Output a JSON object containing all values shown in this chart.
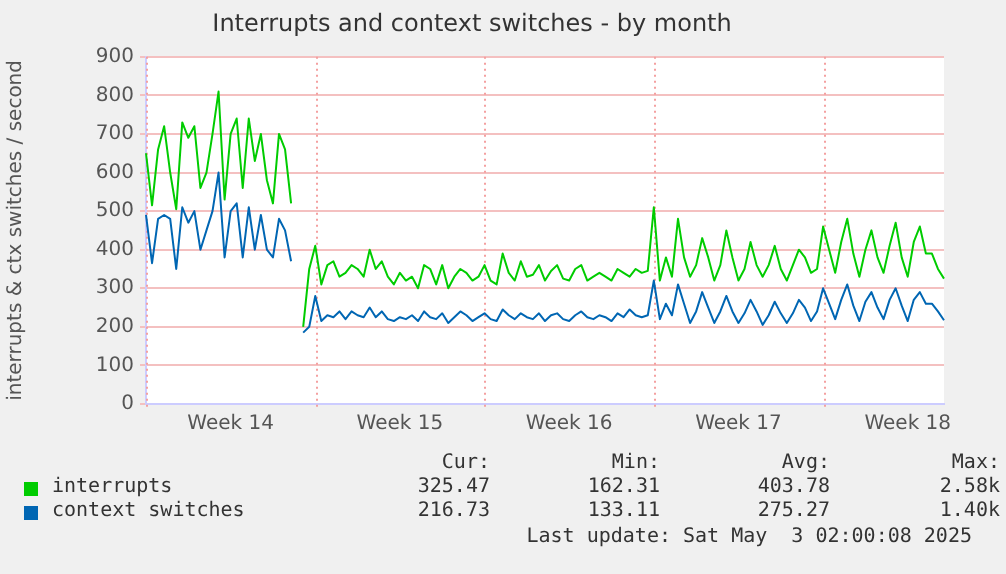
{
  "chart_data": {
    "type": "line",
    "title": "Interrupts and context switches - by month",
    "ylabel": "interrupts & ctx switches / second",
    "categories": [
      null,
      null,
      null,
      null,
      null,
      null,
      null,
      null,
      null,
      null,
      null,
      null,
      null,
      null,
      "Week 14",
      null,
      null,
      null,
      null,
      null,
      null,
      null,
      null,
      null,
      null,
      null,
      null,
      null,
      null,
      null,
      null,
      null,
      null,
      null,
      null,
      null,
      null,
      null,
      null,
      null,
      null,
      null,
      "Week 15",
      null,
      null,
      null,
      null,
      null,
      null,
      null,
      null,
      null,
      null,
      null,
      null,
      null,
      null,
      null,
      null,
      null,
      null,
      null,
      null,
      null,
      null,
      null,
      null,
      null,
      null,
      null,
      "Week 16",
      null,
      null,
      null,
      null,
      null,
      null,
      null,
      null,
      null,
      null,
      null,
      null,
      null,
      null,
      null,
      null,
      null,
      null,
      null,
      null,
      null,
      null,
      null,
      null,
      null,
      null,
      null,
      "Week 17",
      null,
      null,
      null,
      null,
      null,
      null,
      null,
      null,
      null,
      null,
      null,
      null,
      null,
      null,
      null,
      null,
      null,
      null,
      null,
      null,
      null,
      null,
      null,
      null,
      null,
      null,
      null,
      "Week 18",
      null,
      null,
      null,
      null,
      null,
      null
    ],
    "ylim": [
      0,
      900
    ],
    "yticks": [
      0,
      100,
      200,
      300,
      400,
      500,
      600,
      700,
      800,
      900
    ],
    "grid": true,
    "legend": "bottom",
    "marker": "none",
    "line_style": "solid",
    "series": [
      {
        "name": "interrupts",
        "color": "#00cc00",
        "values": [
          650,
          515,
          660,
          720,
          600,
          505,
          730,
          690,
          720,
          560,
          600,
          700,
          810,
          530,
          700,
          740,
          560,
          740,
          630,
          700,
          580,
          520,
          700,
          660,
          520,
          null,
          200,
          350,
          410,
          310,
          360,
          370,
          330,
          340,
          360,
          350,
          330,
          400,
          350,
          370,
          330,
          310,
          340,
          320,
          330,
          300,
          360,
          350,
          310,
          360,
          300,
          330,
          350,
          340,
          320,
          330,
          360,
          320,
          310,
          390,
          340,
          320,
          370,
          330,
          335,
          360,
          320,
          345,
          360,
          325,
          320,
          350,
          360,
          320,
          330,
          340,
          330,
          320,
          350,
          340,
          330,
          350,
          340,
          345,
          510,
          320,
          380,
          330,
          480,
          380,
          330,
          360,
          430,
          380,
          320,
          360,
          450,
          380,
          320,
          350,
          420,
          360,
          330,
          360,
          410,
          350,
          320,
          360,
          400,
          380,
          340,
          350,
          460,
          400,
          340,
          420,
          480,
          390,
          330,
          400,
          450,
          380,
          340,
          410,
          470,
          380,
          330,
          420,
          460,
          390,
          390,
          350,
          325
        ]
      },
      {
        "name": "context switches",
        "color": "#0066b3",
        "values": [
          490,
          365,
          480,
          490,
          480,
          350,
          510,
          470,
          500,
          400,
          450,
          500,
          600,
          380,
          500,
          520,
          380,
          510,
          400,
          490,
          400,
          380,
          480,
          450,
          370,
          null,
          185,
          200,
          280,
          215,
          230,
          225,
          240,
          220,
          240,
          230,
          225,
          250,
          225,
          240,
          220,
          215,
          225,
          220,
          230,
          215,
          240,
          225,
          220,
          235,
          210,
          225,
          240,
          230,
          215,
          225,
          235,
          220,
          215,
          245,
          230,
          220,
          235,
          225,
          220,
          235,
          215,
          230,
          235,
          220,
          215,
          230,
          240,
          225,
          220,
          230,
          225,
          215,
          235,
          225,
          245,
          230,
          225,
          230,
          320,
          220,
          260,
          230,
          310,
          260,
          210,
          240,
          290,
          250,
          210,
          240,
          280,
          240,
          210,
          235,
          270,
          240,
          205,
          230,
          265,
          235,
          210,
          235,
          270,
          250,
          215,
          240,
          300,
          260,
          220,
          270,
          310,
          255,
          215,
          265,
          290,
          250,
          220,
          270,
          300,
          255,
          215,
          270,
          290,
          260,
          260,
          240,
          217
        ]
      }
    ],
    "annotations": [
      "Cur:",
      "Min:",
      "Avg:",
      "Max:",
      "325.47",
      "162.31",
      "403.78",
      "2.58k",
      "216.73",
      "133.11",
      "275.27",
      "1.40k",
      "Last update: Sat May  3 02:00:08 2025"
    ]
  }
}
